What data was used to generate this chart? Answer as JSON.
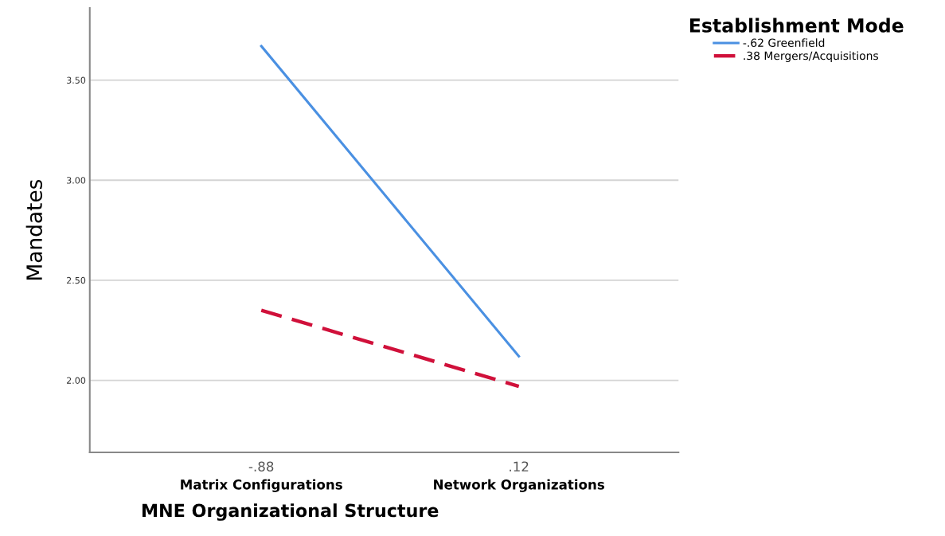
{
  "chart_data": {
    "type": "line",
    "xlabel": "MNE Organizational Structure",
    "ylabel": "Mandates",
    "legend_title": "Establishment Mode",
    "categories": [
      "-.88",
      ".12"
    ],
    "annotations": [
      "Matrix Configurations",
      "Network Organizations"
    ],
    "series": [
      {
        "name": "-.62 Greenfield",
        "color": "#4a90e2",
        "values": [
          3.67,
          2.12
        ],
        "line_style": "solid"
      },
      {
        "name": ".38 Mergers/Acquisitions",
        "color": "#d0103a",
        "values": [
          2.35,
          1.97
        ],
        "line_style": "dashed"
      }
    ],
    "ylim": [
      1.64,
      3.86
    ],
    "yticks": [
      {
        "value": 2.0,
        "label": "2.00"
      },
      {
        "value": 2.5,
        "label": "2.50"
      },
      {
        "value": 3.0,
        "label": "3.00"
      },
      {
        "value": 3.5,
        "label": "3.50"
      }
    ],
    "grid": "y",
    "legend": "top right",
    "marker": "none"
  }
}
